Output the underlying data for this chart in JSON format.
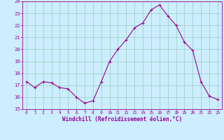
{
  "x": [
    0,
    1,
    2,
    3,
    4,
    5,
    6,
    7,
    8,
    9,
    10,
    11,
    12,
    13,
    14,
    15,
    16,
    17,
    18,
    19,
    20,
    21,
    22,
    23
  ],
  "y": [
    17.3,
    16.8,
    17.3,
    17.2,
    16.8,
    16.7,
    16.0,
    15.5,
    15.7,
    17.3,
    19.0,
    20.0,
    20.8,
    21.8,
    22.2,
    23.3,
    23.7,
    22.8,
    22.0,
    20.6,
    19.9,
    17.3,
    16.1,
    15.8
  ],
  "line_color": "#990099",
  "marker": "+",
  "marker_color": "#990099",
  "bg_color": "#cceeff",
  "grid_color": "#99ccbb",
  "xlabel": "Windchill (Refroidissement éolien,°C)",
  "xlabel_color": "#990099",
  "tick_color": "#990099",
  "xlim": [
    -0.5,
    23.5
  ],
  "ylim": [
    15,
    24
  ],
  "yticks": [
    15,
    16,
    17,
    18,
    19,
    20,
    21,
    22,
    23,
    24
  ],
  "xticks": [
    0,
    1,
    2,
    3,
    4,
    5,
    6,
    7,
    8,
    9,
    10,
    11,
    12,
    13,
    14,
    15,
    16,
    17,
    18,
    19,
    20,
    21,
    22,
    23
  ],
  "figsize": [
    3.2,
    2.0
  ],
  "dpi": 100
}
